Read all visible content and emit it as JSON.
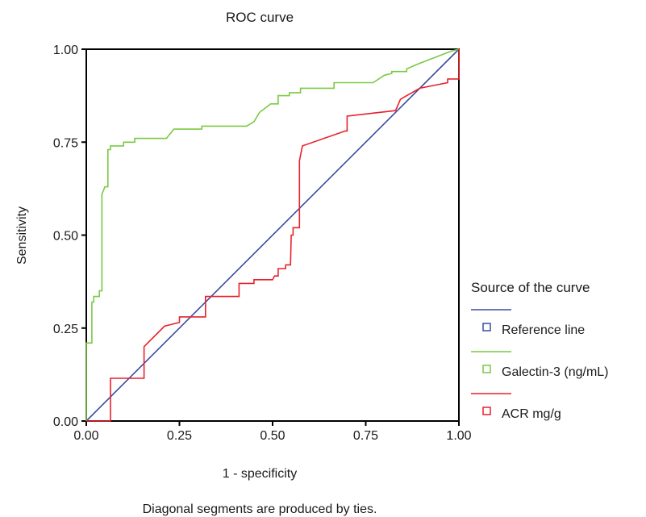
{
  "chart_data": {
    "type": "line",
    "title": "ROC curve",
    "xlabel": "1 - specificity",
    "ylabel": "Sensitivity",
    "footnote": "Diagonal segments are produced by ties.",
    "xlim": [
      0,
      1
    ],
    "ylim": [
      0,
      1
    ],
    "xticks": [
      "0.00",
      "0.25",
      "0.50",
      "0.75",
      "1.00"
    ],
    "yticks": [
      "0.00",
      "0.25",
      "0.50",
      "0.75",
      "1.00"
    ],
    "grid": false,
    "legend_title": "Source of the curve",
    "legend_position": "right",
    "series": [
      {
        "name": "Reference line",
        "color": "#3b4ba0",
        "points": [
          [
            0,
            0
          ],
          [
            1,
            1
          ]
        ]
      },
      {
        "name": "Galectin-3 (ng/mL)",
        "color": "#7ac943",
        "points": [
          [
            0,
            0
          ],
          [
            0,
            0.21
          ],
          [
            0.015,
            0.21
          ],
          [
            0.015,
            0.32
          ],
          [
            0.02,
            0.32
          ],
          [
            0.02,
            0.335
          ],
          [
            0.035,
            0.335
          ],
          [
            0.035,
            0.35
          ],
          [
            0.042,
            0.35
          ],
          [
            0.042,
            0.61
          ],
          [
            0.05,
            0.63
          ],
          [
            0.058,
            0.63
          ],
          [
            0.058,
            0.73
          ],
          [
            0.065,
            0.73
          ],
          [
            0.065,
            0.74
          ],
          [
            0.1,
            0.74
          ],
          [
            0.1,
            0.75
          ],
          [
            0.13,
            0.75
          ],
          [
            0.13,
            0.76
          ],
          [
            0.215,
            0.76
          ],
          [
            0.235,
            0.785
          ],
          [
            0.31,
            0.785
          ],
          [
            0.31,
            0.793
          ],
          [
            0.43,
            0.793
          ],
          [
            0.45,
            0.805
          ],
          [
            0.465,
            0.83
          ],
          [
            0.495,
            0.853
          ],
          [
            0.515,
            0.853
          ],
          [
            0.515,
            0.875
          ],
          [
            0.545,
            0.875
          ],
          [
            0.545,
            0.883
          ],
          [
            0.575,
            0.883
          ],
          [
            0.575,
            0.895
          ],
          [
            0.665,
            0.895
          ],
          [
            0.665,
            0.91
          ],
          [
            0.77,
            0.91
          ],
          [
            0.8,
            0.93
          ],
          [
            0.82,
            0.935
          ],
          [
            0.82,
            0.94
          ],
          [
            0.86,
            0.94
          ],
          [
            0.86,
            0.947
          ],
          [
            0.89,
            0.96
          ],
          [
            0.98,
            0.995
          ],
          [
            1,
            1
          ]
        ]
      },
      {
        "name": "ACR mg/g",
        "color": "#e8212b",
        "points": [
          [
            0,
            0
          ],
          [
            0.065,
            0
          ],
          [
            0.065,
            0.115
          ],
          [
            0.155,
            0.115
          ],
          [
            0.155,
            0.2
          ],
          [
            0.21,
            0.255
          ],
          [
            0.25,
            0.265
          ],
          [
            0.25,
            0.28
          ],
          [
            0.32,
            0.28
          ],
          [
            0.32,
            0.335
          ],
          [
            0.41,
            0.335
          ],
          [
            0.41,
            0.37
          ],
          [
            0.45,
            0.37
          ],
          [
            0.45,
            0.38
          ],
          [
            0.5,
            0.38
          ],
          [
            0.505,
            0.39
          ],
          [
            0.515,
            0.39
          ],
          [
            0.515,
            0.41
          ],
          [
            0.535,
            0.41
          ],
          [
            0.535,
            0.42
          ],
          [
            0.548,
            0.42
          ],
          [
            0.55,
            0.5
          ],
          [
            0.555,
            0.5
          ],
          [
            0.555,
            0.52
          ],
          [
            0.572,
            0.52
          ],
          [
            0.572,
            0.7
          ],
          [
            0.58,
            0.74
          ],
          [
            0.695,
            0.78
          ],
          [
            0.7,
            0.78
          ],
          [
            0.7,
            0.82
          ],
          [
            0.83,
            0.835
          ],
          [
            0.843,
            0.865
          ],
          [
            0.86,
            0.875
          ],
          [
            0.895,
            0.895
          ],
          [
            0.97,
            0.91
          ],
          [
            0.97,
            0.92
          ],
          [
            1,
            0.92
          ],
          [
            1,
            1
          ]
        ]
      }
    ]
  }
}
